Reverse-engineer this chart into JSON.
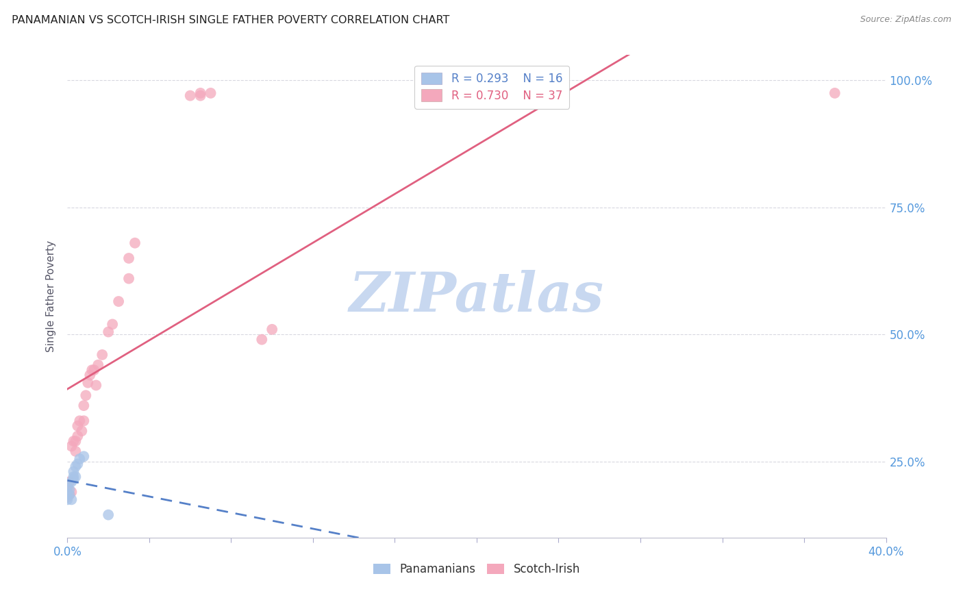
{
  "title": "PANAMANIAN VS SCOTCH-IRISH SINGLE FATHER POVERTY CORRELATION CHART",
  "source": "Source: ZipAtlas.com",
  "xlabel_left_label": "0.0%",
  "xlabel_right_label": "40.0%",
  "ylabel": "Single Father Poverty",
  "ylabel_ticks": [
    "25.0%",
    "50.0%",
    "75.0%",
    "100.0%"
  ],
  "ylabel_vals": [
    0.25,
    0.5,
    0.75,
    1.0
  ],
  "xlim": [
    0.0,
    0.4
  ],
  "ylim": [
    0.1,
    1.05
  ],
  "panamanian_color": "#a8c4e8",
  "scotch_irish_color": "#f4a8bc",
  "panamanian_line_color": "#5580c8",
  "scotch_irish_line_color": "#e06080",
  "grid_color": "#d8d8e0",
  "watermark_text": "ZIPatlas",
  "watermark_color": "#c8d8f0",
  "legend_R_pan": "R = 0.293",
  "legend_N_pan": "N = 16",
  "legend_R_scotch": "R = 0.730",
  "legend_N_scotch": "N = 37",
  "pan_x": [
    0.0,
    0.0,
    0.0,
    0.001,
    0.001,
    0.002,
    0.002,
    0.003,
    0.003,
    0.003,
    0.004,
    0.004,
    0.005,
    0.006,
    0.008,
    0.02
  ],
  "pan_y": [
    0.175,
    0.185,
    0.2,
    0.185,
    0.195,
    0.175,
    0.21,
    0.22,
    0.215,
    0.23,
    0.22,
    0.24,
    0.245,
    0.255,
    0.26,
    0.145
  ],
  "scotch_x": [
    0.0,
    0.0,
    0.001,
    0.001,
    0.002,
    0.002,
    0.003,
    0.004,
    0.004,
    0.005,
    0.005,
    0.006,
    0.007,
    0.008,
    0.008,
    0.009,
    0.01,
    0.011,
    0.012,
    0.013,
    0.014,
    0.015,
    0.017,
    0.02,
    0.022,
    0.025,
    0.03,
    0.03,
    0.033,
    0.06,
    0.065,
    0.07,
    0.065,
    0.095,
    0.1,
    0.21,
    0.375
  ],
  "scotch_y": [
    0.18,
    0.2,
    0.185,
    0.21,
    0.19,
    0.28,
    0.29,
    0.27,
    0.29,
    0.3,
    0.32,
    0.33,
    0.31,
    0.33,
    0.36,
    0.38,
    0.405,
    0.42,
    0.43,
    0.43,
    0.4,
    0.44,
    0.46,
    0.505,
    0.52,
    0.565,
    0.61,
    0.65,
    0.68,
    0.97,
    0.97,
    0.975,
    0.975,
    0.49,
    0.51,
    0.975,
    0.975
  ],
  "marker_size": 130,
  "marker_alpha": 0.75
}
